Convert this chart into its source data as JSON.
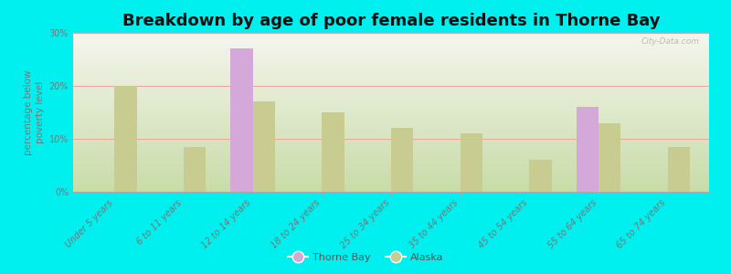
{
  "title": "Breakdown by age of poor female residents in Thorne Bay",
  "ylabel": "percentage below\npoverty level",
  "categories": [
    "Under 5 years",
    "6 to 11 years",
    "12 to 14 years",
    "18 to 24 years",
    "25 to 34 years",
    "35 to 44 years",
    "45 to 54 years",
    "55 to 64 years",
    "65 to 74 years"
  ],
  "thorne_bay": [
    0,
    0,
    27,
    0,
    0,
    0,
    0,
    16,
    0
  ],
  "alaska": [
    20,
    8.5,
    17,
    15,
    12,
    11,
    6,
    13,
    8.5
  ],
  "thorne_bay_color": "#d4a8d8",
  "alaska_color": "#c8cc90",
  "background_color": "#00efef",
  "plot_bg_top": "#f5f5ee",
  "plot_bg_bottom": "#c8dca8",
  "grid_color": "#f0a0a0",
  "ylim": [
    0,
    30
  ],
  "yticks": [
    0,
    10,
    20,
    30
  ],
  "ytick_labels": [
    "0%",
    "10%",
    "20%",
    "30%"
  ],
  "bar_width": 0.32,
  "title_fontsize": 13,
  "axis_label_fontsize": 7.5,
  "tick_label_fontsize": 7,
  "legend_fontsize": 8,
  "watermark": "City-Data.com"
}
